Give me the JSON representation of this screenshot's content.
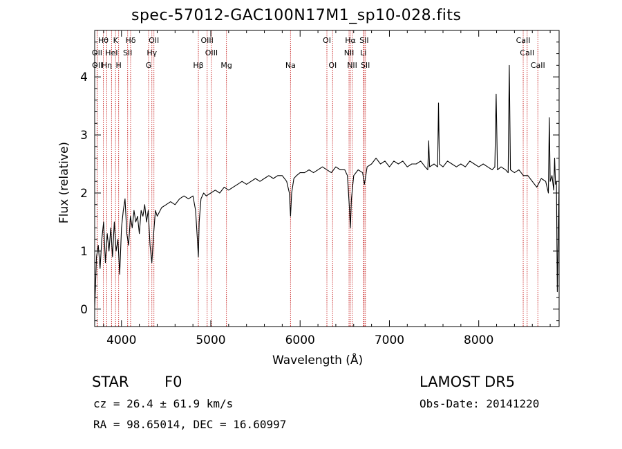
{
  "chart_data": {
    "type": "line",
    "title": "spec-57012-GAC100N17M1_sp10-028.fits",
    "xlabel": "Wavelength (Å)",
    "ylabel": "Flux (relative)",
    "xlim": [
      3700,
      8900
    ],
    "ylim": [
      -0.3,
      4.8
    ],
    "xticks": [
      4000,
      5000,
      6000,
      7000,
      8000
    ],
    "xticklabels": [
      "4000",
      "5000",
      "6000",
      "7000",
      "8000"
    ],
    "yticks": [
      0,
      1,
      2,
      3,
      4
    ],
    "yticklabels": [
      "0",
      "1",
      "2",
      "3",
      "4"
    ],
    "grid": false,
    "series": [
      {
        "color": "#000000",
        "x": [
          3700,
          3720,
          3740,
          3760,
          3780,
          3800,
          3820,
          3840,
          3860,
          3880,
          3900,
          3920,
          3940,
          3960,
          3980,
          4000,
          4020,
          4040,
          4060,
          4080,
          4100,
          4120,
          4140,
          4160,
          4180,
          4200,
          4220,
          4240,
          4260,
          4280,
          4300,
          4320,
          4340,
          4360,
          4380,
          4400,
          4450,
          4500,
          4550,
          4600,
          4650,
          4700,
          4750,
          4800,
          4830,
          4850,
          4861,
          4870,
          4890,
          4920,
          4950,
          5000,
          5050,
          5100,
          5150,
          5200,
          5250,
          5300,
          5350,
          5400,
          5450,
          5500,
          5550,
          5600,
          5650,
          5700,
          5750,
          5800,
          5850,
          5880,
          5893,
          5905,
          5930,
          5960,
          6000,
          6050,
          6100,
          6150,
          6200,
          6250,
          6300,
          6350,
          6400,
          6450,
          6500,
          6530,
          6550,
          6563,
          6575,
          6600,
          6650,
          6700,
          6720,
          6750,
          6800,
          6850,
          6900,
          6950,
          7000,
          7050,
          7100,
          7150,
          7200,
          7250,
          7300,
          7350,
          7400,
          7430,
          7440,
          7450,
          7500,
          7540,
          7550,
          7560,
          7600,
          7650,
          7700,
          7750,
          7800,
          7850,
          7900,
          7950,
          8000,
          8050,
          8100,
          8150,
          8180,
          8195,
          8210,
          8250,
          8300,
          8330,
          8342,
          8355,
          8400,
          8450,
          8500,
          8550,
          8600,
          8650,
          8700,
          8750,
          8780,
          8790,
          8800,
          8820,
          8840,
          8850,
          8860,
          8870,
          8880,
          8900
        ],
        "y": [
          0.0,
          0.9,
          1.1,
          0.7,
          1.2,
          1.5,
          0.8,
          1.3,
          1.0,
          1.4,
          0.9,
          1.5,
          1.0,
          1.2,
          0.6,
          1.4,
          1.7,
          1.9,
          1.3,
          1.1,
          1.6,
          1.4,
          1.7,
          1.5,
          1.6,
          1.3,
          1.7,
          1.6,
          1.8,
          1.5,
          1.7,
          1.1,
          0.8,
          1.3,
          1.7,
          1.6,
          1.75,
          1.8,
          1.85,
          1.8,
          1.9,
          1.95,
          1.9,
          1.95,
          1.7,
          1.2,
          0.9,
          1.5,
          1.9,
          2.0,
          1.95,
          2.0,
          2.05,
          2.0,
          2.1,
          2.05,
          2.1,
          2.15,
          2.2,
          2.15,
          2.2,
          2.25,
          2.2,
          2.25,
          2.3,
          2.25,
          2.3,
          2.3,
          2.2,
          2.0,
          1.6,
          2.0,
          2.25,
          2.3,
          2.35,
          2.35,
          2.4,
          2.35,
          2.4,
          2.45,
          2.4,
          2.35,
          2.45,
          2.4,
          2.4,
          2.3,
          1.8,
          1.4,
          1.9,
          2.3,
          2.4,
          2.35,
          2.15,
          2.45,
          2.5,
          2.6,
          2.5,
          2.55,
          2.45,
          2.55,
          2.5,
          2.55,
          2.45,
          2.5,
          2.5,
          2.55,
          2.45,
          2.4,
          2.9,
          2.45,
          2.5,
          2.45,
          3.55,
          2.5,
          2.45,
          2.55,
          2.5,
          2.45,
          2.5,
          2.45,
          2.55,
          2.5,
          2.45,
          2.5,
          2.45,
          2.4,
          2.45,
          3.7,
          2.4,
          2.45,
          2.4,
          2.35,
          4.2,
          2.4,
          2.35,
          2.4,
          2.3,
          2.3,
          2.2,
          2.1,
          2.25,
          2.2,
          2.0,
          3.3,
          2.2,
          2.3,
          2.05,
          2.6,
          2.15,
          2.2,
          0.3,
          2.2
        ]
      }
    ],
    "line_labels": [
      {
        "text": "Hθ",
        "row": 0,
        "x": 3797
      },
      {
        "text": "K",
        "row": 0,
        "x": 3934
      },
      {
        "text": "Hδ",
        "row": 0,
        "x": 4102
      },
      {
        "text": "OII",
        "row": 0,
        "x": 4363
      },
      {
        "text": "OIII",
        "row": 0,
        "x": 4959
      },
      {
        "text": "OI",
        "row": 0,
        "x": 6300
      },
      {
        "text": "Hα",
        "row": 0,
        "x": 6563
      },
      {
        "text": "SII",
        "row": 0,
        "x": 6717
      },
      {
        "text": "CaII",
        "row": 0,
        "x": 8498
      },
      {
        "text": "OII",
        "row": 1,
        "x": 3727
      },
      {
        "text": "HeI",
        "row": 1,
        "x": 3889
      },
      {
        "text": "SII",
        "row": 1,
        "x": 4069
      },
      {
        "text": "Hγ",
        "row": 1,
        "x": 4340
      },
      {
        "text": "OIII",
        "row": 1,
        "x": 5007
      },
      {
        "text": "NII",
        "row": 1,
        "x": 6548
      },
      {
        "text": "Li",
        "row": 1,
        "x": 6708
      },
      {
        "text": "CaII",
        "row": 1,
        "x": 8542
      },
      {
        "text": "OII",
        "row": 2,
        "x": 3729
      },
      {
        "text": "Hη",
        "row": 2,
        "x": 3835
      },
      {
        "text": "H",
        "row": 2,
        "x": 3968
      },
      {
        "text": "G",
        "row": 2,
        "x": 4304
      },
      {
        "text": "Hβ",
        "row": 2,
        "x": 4861
      },
      {
        "text": "Mg",
        "row": 2,
        "x": 5175
      },
      {
        "text": "Na",
        "row": 2,
        "x": 5893
      },
      {
        "text": "OI",
        "row": 2,
        "x": 6364
      },
      {
        "text": "NII",
        "row": 2,
        "x": 6583
      },
      {
        "text": "SII",
        "row": 2,
        "x": 6731
      },
      {
        "text": "CaII",
        "row": 2,
        "x": 8662
      }
    ],
    "line_color": "#cc3333"
  },
  "info": {
    "class_label": "STAR",
    "subclass_label": "F0",
    "survey": "LAMOST DR5",
    "cz": "cz = 26.4 ± 61.9 km/s",
    "obs_date": "Obs-Date: 20141220",
    "radec": "RA =  98.65014, DEC =  16.60997"
  }
}
